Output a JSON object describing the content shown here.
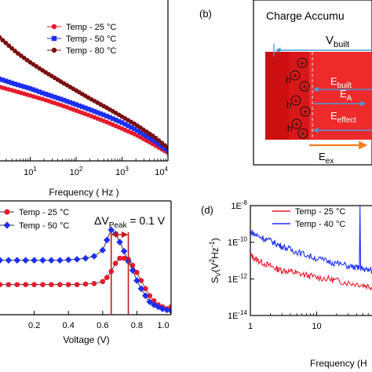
{
  "panel_b": {
    "label": "(b)",
    "title": "Charge Accumu",
    "v_built": {
      "main": "V",
      "sub": "built"
    },
    "e_built": {
      "main": "E",
      "sub": "built"
    },
    "e_a": {
      "main": "E",
      "sub": "A"
    },
    "e_effect": {
      "main": "E",
      "sub": "effect"
    },
    "e_ex": {
      "main": "E",
      "sub": "ex"
    },
    "hole": "h",
    "plus": "+",
    "colors": {
      "dark_red": "#cc1010",
      "red": "#ee2a2a",
      "arrow_blue": "#4a9ad4",
      "arrow_orange": "#f08020"
    }
  },
  "chart_data": [
    {
      "type": "scatter",
      "panel": "a",
      "xscale": "log",
      "xlabel": "Frequency ( Hz )",
      "xlim": [
        1,
        10000
      ],
      "xticks": [
        {
          "value": 10,
          "base": "10",
          "exp": "1"
        },
        {
          "value": 100,
          "base": "10",
          "exp": "2"
        },
        {
          "value": 1000,
          "base": "10",
          "exp": "3"
        },
        {
          "value": 10000,
          "base": "10",
          "exp": "4"
        }
      ],
      "legend_position": "top-right",
      "series": [
        {
          "name": "Temp - 25 °C",
          "marker": "circle",
          "color": "#e8192c",
          "x": [
            1,
            2,
            5,
            10,
            20,
            50,
            100,
            200,
            500,
            1000,
            2000,
            5000,
            10000
          ],
          "y": [
            0.78,
            0.74,
            0.69,
            0.65,
            0.61,
            0.55,
            0.5,
            0.45,
            0.38,
            0.32,
            0.26,
            0.16,
            0.08
          ]
        },
        {
          "name": "Temp - 50 °C",
          "marker": "square",
          "color": "#1c2ff0",
          "x": [
            1,
            2,
            5,
            10,
            20,
            50,
            100,
            200,
            500,
            1000,
            2000,
            5000,
            10000
          ],
          "y": [
            0.87,
            0.82,
            0.76,
            0.72,
            0.67,
            0.61,
            0.56,
            0.51,
            0.44,
            0.38,
            0.31,
            0.2,
            0.1
          ]
        },
        {
          "name": "Temp - 80 °C",
          "marker": "circle",
          "color": "#7a1010",
          "x": [
            1,
            2,
            5,
            10,
            20,
            50,
            100,
            200,
            500,
            1000,
            2000,
            5000,
            10000
          ],
          "y": [
            1.35,
            1.24,
            1.08,
            0.98,
            0.89,
            0.78,
            0.7,
            0.62,
            0.52,
            0.44,
            0.36,
            0.24,
            0.13
          ]
        }
      ],
      "ylim": [
        0,
        1.6
      ]
    },
    {
      "type": "line",
      "panel": "c",
      "xlabel": "Voltage (V)",
      "xlim": [
        0,
        1.0
      ],
      "ylim": [
        0,
        1
      ],
      "xticks": [
        "0.2",
        "0.4",
        "0.6",
        "0.8",
        "1.0"
      ],
      "legend_position": "top-left",
      "annotation": {
        "prefix": "ΔV",
        "sub": "Peak",
        "suffix": " = 0.1 V",
        "from": 0.65,
        "to": 0.75
      },
      "series": [
        {
          "name": "Temp - 25 °C",
          "marker": "circle",
          "color": "#e8192c",
          "x": [
            0.0,
            0.05,
            0.1,
            0.15,
            0.2,
            0.25,
            0.3,
            0.35,
            0.4,
            0.45,
            0.5,
            0.55,
            0.6,
            0.625,
            0.65,
            0.675,
            0.7,
            0.725,
            0.75,
            0.775,
            0.8,
            0.825,
            0.85,
            0.875,
            0.9,
            0.925,
            0.95,
            0.975,
            1.0
          ],
          "y": [
            0.22,
            0.22,
            0.22,
            0.22,
            0.22,
            0.22,
            0.22,
            0.22,
            0.22,
            0.22,
            0.225,
            0.23,
            0.25,
            0.29,
            0.35,
            0.43,
            0.48,
            0.48,
            0.47,
            0.41,
            0.34,
            0.26,
            0.18,
            0.11,
            0.06,
            0.02,
            0.0,
            -0.02,
            0.0
          ]
        },
        {
          "name": "Temp - 50 °C",
          "marker": "diamond",
          "color": "#1c2ff0",
          "x": [
            0.0,
            0.05,
            0.1,
            0.15,
            0.2,
            0.25,
            0.3,
            0.35,
            0.4,
            0.45,
            0.5,
            0.55,
            0.6,
            0.625,
            0.65,
            0.675,
            0.7,
            0.725,
            0.75,
            0.775,
            0.8,
            0.825,
            0.85,
            0.875,
            0.9,
            0.925,
            0.95,
            0.975,
            1.0
          ],
          "y": [
            0.46,
            0.46,
            0.46,
            0.46,
            0.46,
            0.46,
            0.46,
            0.46,
            0.465,
            0.47,
            0.48,
            0.5,
            0.56,
            0.66,
            0.76,
            0.72,
            0.64,
            0.55,
            0.45,
            0.36,
            0.26,
            0.18,
            0.11,
            0.05,
            0.02,
            0.0,
            -0.02,
            -0.03,
            -0.04
          ]
        }
      ]
    },
    {
      "type": "line",
      "panel": "d",
      "label": "(d)",
      "xscale": "log",
      "yscale": "log",
      "xlabel": "Frequency (H",
      "ylabel": {
        "main": "S",
        "sub": "V",
        "mid": "(V",
        "sup1": "2",
        "mid2": "Hz",
        "sup2": "-1",
        "end": ")"
      },
      "xlim": [
        1,
        100
      ],
      "ylim": [
        1e-14,
        1e-08
      ],
      "xticks": [
        {
          "value": 1,
          "text": "1"
        },
        {
          "value": 10,
          "text": "10"
        }
      ],
      "yticks": [
        {
          "value": 1e-08,
          "base": "1E",
          "exp": "-8"
        },
        {
          "value": 1e-10,
          "base": "1E",
          "exp": "-10"
        },
        {
          "value": 1e-12,
          "base": "1E",
          "exp": "-12"
        },
        {
          "value": 1e-14,
          "base": "1E",
          "exp": "-14"
        }
      ],
      "legend_position": "top-center",
      "series": [
        {
          "name": "Temp - 25 °C",
          "color": "#e8192c",
          "x": [
            1.0,
            1.2,
            1.5,
            2.0,
            2.5,
            3.0,
            4.0,
            5.0,
            7.0,
            10,
            15,
            20,
            30,
            45,
            60,
            80,
            100
          ],
          "y": [
            2e-11,
            1.2e-11,
            8e-12,
            5e-12,
            3.5e-12,
            3e-12,
            2.5e-12,
            2e-12,
            1.6e-12,
            1.2e-12,
            1e-12,
            8e-13,
            6e-13,
            5e-13,
            4e-13,
            3e-13,
            2.5e-13
          ]
        },
        {
          "name": "Temp - 40 °C",
          "color": "#1c2ff0",
          "x": [
            1.0,
            1.2,
            1.5,
            2.0,
            2.5,
            3.0,
            4.0,
            5.0,
            7.0,
            10,
            15,
            20,
            30,
            40,
            44,
            45,
            46,
            50,
            60,
            80,
            100
          ],
          "y": [
            4e-10,
            2.5e-10,
            1.8e-10,
            1.2e-10,
            8e-11,
            6e-11,
            4e-11,
            3e-11,
            2e-11,
            1.3e-11,
            9e-12,
            7e-12,
            5e-12,
            4e-12,
            4e-12,
            1e-08,
            4e-12,
            3.5e-12,
            3e-12,
            2.5e-12,
            2e-12
          ]
        }
      ]
    }
  ]
}
